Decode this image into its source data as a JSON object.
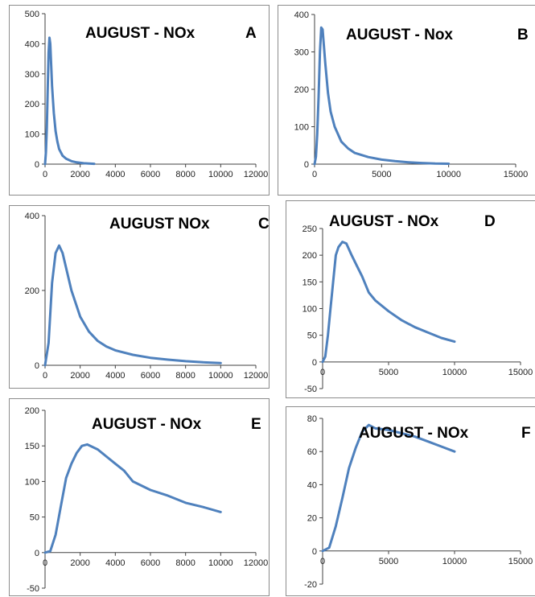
{
  "colors": {
    "line": "#4f81bd",
    "axis": "#404040",
    "frame": "#8c8c8c"
  },
  "chart_data": [
    {
      "type": "line",
      "title": "AUGUST -  NOx",
      "panel_label": "A",
      "xlim": [
        0,
        12000
      ],
      "ylim": [
        0,
        500
      ],
      "xticks": [
        0,
        2000,
        4000,
        6000,
        8000,
        10000,
        12000
      ],
      "yticks": [
        0,
        100,
        200,
        300,
        400,
        500
      ],
      "grid": false,
      "legend": "none",
      "series": [
        {
          "x": [
            0,
            50,
            100,
            150,
            200,
            250,
            300,
            350,
            400,
            500,
            600,
            700,
            800,
            1000,
            1200,
            1500,
            1800,
            2200,
            2800
          ],
          "values": [
            0,
            40,
            120,
            250,
            370,
            420,
            400,
            330,
            260,
            170,
            110,
            75,
            50,
            28,
            18,
            10,
            6,
            3,
            1
          ]
        }
      ]
    },
    {
      "type": "line",
      "title": "AUGUST -  Nox",
      "panel_label": "B",
      "xlim": [
        0,
        15000
      ],
      "ylim": [
        0,
        400
      ],
      "xticks": [
        0,
        5000,
        10000,
        15000
      ],
      "yticks": [
        0,
        100,
        200,
        300,
        400
      ],
      "grid": false,
      "legend": "none",
      "series": [
        {
          "x": [
            0,
            100,
            200,
            300,
            400,
            500,
            600,
            800,
            1000,
            1200,
            1500,
            2000,
            2500,
            3000,
            4000,
            5000,
            6000,
            7000,
            8000,
            9000,
            10000
          ],
          "values": [
            0,
            20,
            80,
            180,
            300,
            365,
            360,
            270,
            190,
            140,
            100,
            60,
            42,
            30,
            19,
            12,
            8,
            5,
            3,
            1.5,
            1
          ]
        }
      ]
    },
    {
      "type": "line",
      "title": "AUGUST  NOx",
      "panel_label": "C",
      "xlim": [
        0,
        12000
      ],
      "ylim": [
        0,
        400
      ],
      "xticks": [
        0,
        2000,
        4000,
        6000,
        8000,
        10000,
        12000
      ],
      "yticks": [
        0,
        200,
        400
      ],
      "grid": false,
      "legend": "none",
      "series": [
        {
          "x": [
            0,
            200,
            400,
            600,
            800,
            1000,
            1200,
            1500,
            2000,
            2500,
            3000,
            3500,
            4000,
            5000,
            6000,
            7000,
            8000,
            9000,
            10000
          ],
          "values": [
            0,
            60,
            220,
            300,
            320,
            300,
            260,
            200,
            130,
            90,
            65,
            50,
            40,
            28,
            20,
            15,
            11,
            8,
            6
          ]
        }
      ]
    },
    {
      "type": "line",
      "title": "AUGUST -  NOx",
      "panel_label": "D",
      "xlim": [
        0,
        15000
      ],
      "ylim": [
        -50,
        250
      ],
      "xticks": [
        0,
        5000,
        10000,
        15000
      ],
      "yticks": [
        -50,
        0,
        50,
        100,
        150,
        200,
        250
      ],
      "grid": false,
      "legend": "none",
      "series": [
        {
          "x": [
            0,
            200,
            400,
            600,
            800,
            1000,
            1200,
            1500,
            1800,
            2200,
            2600,
            3000,
            3500,
            4000,
            5000,
            6000,
            7000,
            8000,
            9000,
            10000
          ],
          "values": [
            0,
            10,
            50,
            100,
            150,
            200,
            215,
            225,
            222,
            200,
            180,
            160,
            130,
            115,
            95,
            78,
            65,
            55,
            45,
            38
          ]
        }
      ]
    },
    {
      "type": "line",
      "title": "AUGUST -  NOx",
      "panel_label": "E",
      "xlim": [
        0,
        12000
      ],
      "ylim": [
        -50,
        200
      ],
      "xticks": [
        0,
        2000,
        4000,
        6000,
        8000,
        10000,
        12000
      ],
      "yticks": [
        -50,
        0,
        50,
        100,
        150,
        200
      ],
      "grid": false,
      "legend": "none",
      "series": [
        {
          "x": [
            0,
            300,
            600,
            900,
            1200,
            1500,
            1800,
            2100,
            2400,
            3000,
            3500,
            4000,
            4500,
            5000,
            6000,
            7000,
            8000,
            9000,
            10000
          ],
          "values": [
            0,
            2,
            25,
            65,
            105,
            125,
            140,
            150,
            152,
            145,
            135,
            125,
            115,
            100,
            88,
            80,
            70,
            64,
            57
          ]
        }
      ]
    },
    {
      "type": "line",
      "title": "AUGUST -  NOx",
      "panel_label": "F",
      "xlim": [
        0,
        15000
      ],
      "ylim": [
        -20,
        80
      ],
      "xticks": [
        0,
        5000,
        10000,
        15000
      ],
      "yticks": [
        -20,
        0,
        20,
        40,
        60,
        80
      ],
      "grid": false,
      "legend": "none",
      "series": [
        {
          "x": [
            0,
            500,
            1000,
            1500,
            2000,
            2500,
            3000,
            3500,
            4000,
            5000,
            6000,
            7000,
            8000,
            9000,
            10000
          ],
          "values": [
            0,
            2,
            15,
            32,
            50,
            62,
            72,
            76,
            74,
            73,
            71,
            69,
            66,
            63,
            60
          ]
        }
      ]
    }
  ]
}
